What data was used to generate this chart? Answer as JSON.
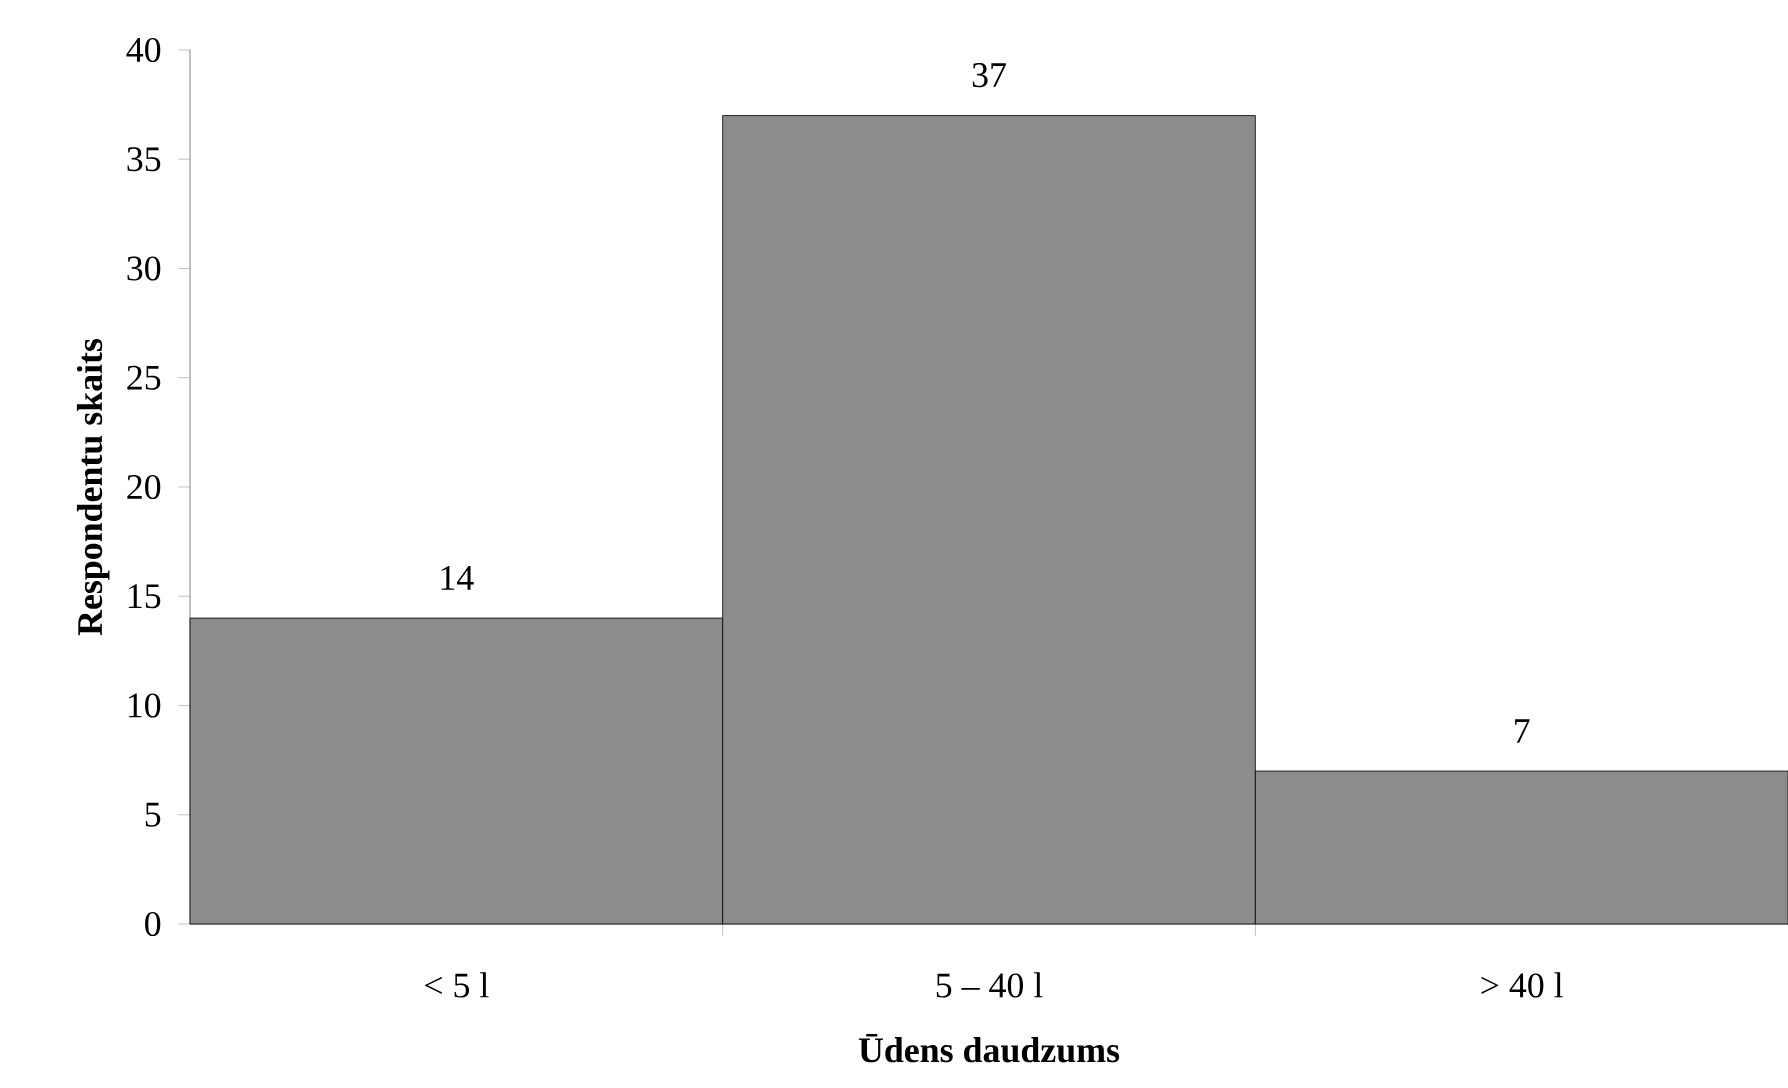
{
  "chart_data": {
    "type": "bar",
    "xlabel": "Ūdens daudzums",
    "ylabel": "Respondentu skaits",
    "categories": [
      "< 5 l",
      "5 – 40 l",
      "> 40 l"
    ],
    "values": [
      14,
      37,
      7
    ],
    "color": "#8c8c8c",
    "ylim": [
      0,
      40
    ],
    "yticks": [
      0,
      5,
      10,
      15,
      20,
      25,
      30,
      35,
      40
    ],
    "data_labels": true
  }
}
